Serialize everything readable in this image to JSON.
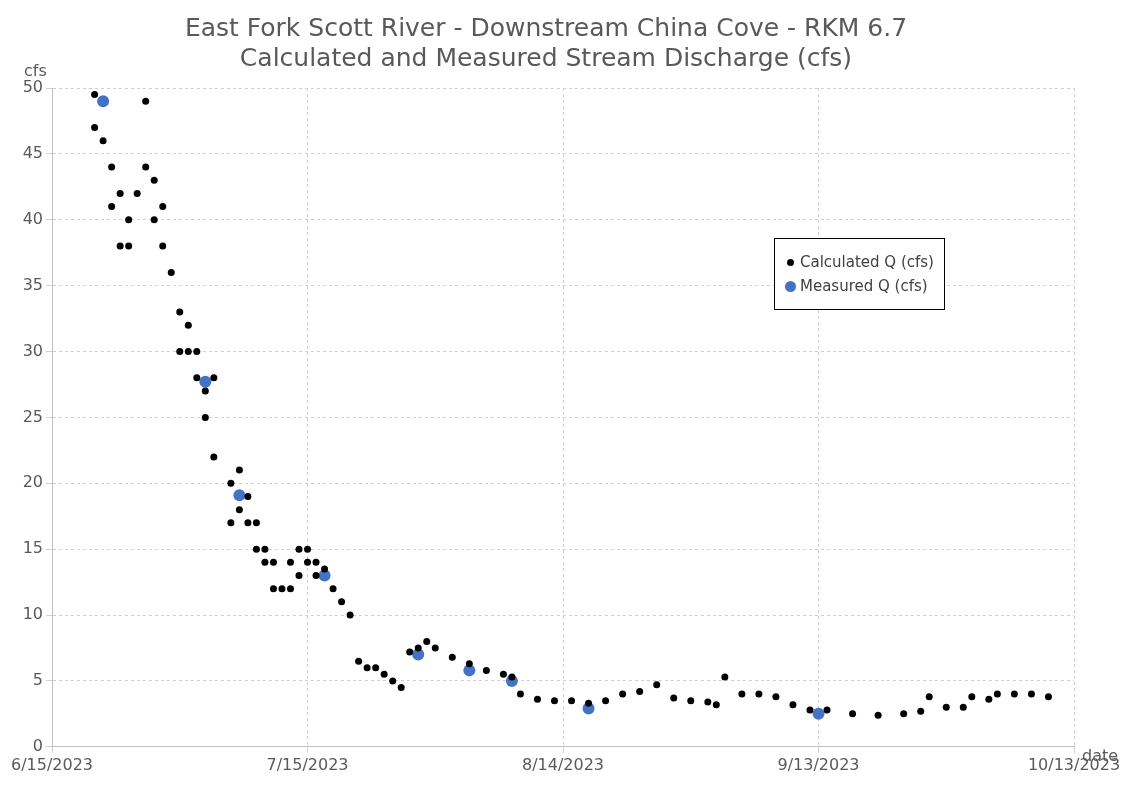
{
  "chart_data": {
    "type": "scatter",
    "title": [
      "East Fork Scott River - Downstream China Cove - RKM 6.7",
      "Calculated and Measured Stream Discharge (cfs)"
    ],
    "xlabel": "date",
    "ylabel": "cfs",
    "xlim": [
      "2023-06-15",
      "2023-10-13"
    ],
    "xticks": [
      {
        "value": "2023-06-15",
        "label": "6/15/2023"
      },
      {
        "value": "2023-07-15",
        "label": "7/15/2023"
      },
      {
        "value": "2023-08-14",
        "label": "8/14/2023"
      },
      {
        "value": "2023-09-13",
        "label": "9/13/2023"
      },
      {
        "value": "2023-10-13",
        "label": "10/13/2023"
      }
    ],
    "ylim": [
      0,
      50
    ],
    "yticks": [
      0,
      5,
      10,
      15,
      20,
      25,
      30,
      35,
      40,
      45,
      50
    ],
    "grid": true,
    "legend": "top right",
    "marker": "circle",
    "series": [
      {
        "name": "Calculated Q (cfs)",
        "color": "#000000",
        "x": [
          "2023-06-20",
          "2023-06-20",
          "2023-06-21",
          "2023-06-22",
          "2023-06-22",
          "2023-06-23",
          "2023-06-23",
          "2023-06-24",
          "2023-06-24",
          "2023-06-25",
          "2023-06-26",
          "2023-06-26",
          "2023-06-27",
          "2023-06-27",
          "2023-06-28",
          "2023-06-28",
          "2023-06-29",
          "2023-06-30",
          "2023-06-30",
          "2023-07-01",
          "2023-07-01",
          "2023-07-02",
          "2023-07-02",
          "2023-07-03",
          "2023-07-03",
          "2023-07-04",
          "2023-07-04",
          "2023-07-06",
          "2023-07-06",
          "2023-07-07",
          "2023-07-07",
          "2023-07-08",
          "2023-07-08",
          "2023-07-09",
          "2023-07-09",
          "2023-07-10",
          "2023-07-10",
          "2023-07-11",
          "2023-07-11",
          "2023-07-12",
          "2023-07-13",
          "2023-07-13",
          "2023-07-14",
          "2023-07-14",
          "2023-07-15",
          "2023-07-15",
          "2023-07-16",
          "2023-07-16",
          "2023-07-17",
          "2023-07-18",
          "2023-07-19",
          "2023-07-20",
          "2023-07-21",
          "2023-07-22",
          "2023-07-23",
          "2023-07-24",
          "2023-07-25",
          "2023-07-26",
          "2023-07-27",
          "2023-07-28",
          "2023-07-29",
          "2023-07-30",
          "2023-08-01",
          "2023-08-03",
          "2023-08-05",
          "2023-08-07",
          "2023-08-08",
          "2023-08-09",
          "2023-08-11",
          "2023-08-13",
          "2023-08-15",
          "2023-08-17",
          "2023-08-19",
          "2023-08-21",
          "2023-08-23",
          "2023-08-25",
          "2023-08-27",
          "2023-08-29",
          "2023-08-31",
          "2023-09-01",
          "2023-09-02",
          "2023-09-04",
          "2023-09-06",
          "2023-09-08",
          "2023-09-10",
          "2023-09-12",
          "2023-09-14",
          "2023-09-17",
          "2023-09-20",
          "2023-09-23",
          "2023-09-25",
          "2023-09-26",
          "2023-09-28",
          "2023-09-30",
          "2023-10-01",
          "2023-10-03",
          "2023-10-04",
          "2023-10-06",
          "2023-10-08",
          "2023-10-10"
        ],
        "values": [
          49.5,
          47,
          46,
          44,
          41,
          42,
          38,
          40,
          38,
          42,
          49,
          44,
          43,
          40,
          41,
          38,
          36,
          33,
          30,
          32,
          30,
          30,
          28,
          27,
          25,
          28,
          22,
          20,
          17,
          21,
          18,
          19,
          17,
          17,
          15,
          15,
          14,
          14,
          12,
          12,
          14,
          12,
          15,
          13,
          15,
          14,
          14,
          13,
          13.5,
          12,
          11,
          10,
          6.5,
          6,
          6,
          5.5,
          5,
          4.5,
          7.2,
          7.5,
          8,
          7.5,
          6.8,
          6.3,
          5.8,
          5.5,
          5.3,
          4,
          3.6,
          3.5,
          3.5,
          3.3,
          3.5,
          4,
          4.2,
          4.7,
          3.7,
          3.5,
          3.4,
          3.2,
          5.3,
          4,
          4,
          3.8,
          3.2,
          2.8,
          2.8,
          2.5,
          2.4,
          2.5,
          2.7,
          3.8,
          3,
          3,
          3.8,
          3.6,
          4,
          4,
          4,
          3.8
        ]
      },
      {
        "name": "Measured Q (cfs)",
        "color": "#4472c4",
        "x": [
          "2023-06-21",
          "2023-07-03",
          "2023-07-07",
          "2023-07-17",
          "2023-07-28",
          "2023-08-03",
          "2023-08-08",
          "2023-08-17",
          "2023-09-13"
        ],
        "values": [
          49,
          27.7,
          19.1,
          13,
          7,
          5.8,
          5,
          2.9,
          2.5
        ]
      }
    ]
  }
}
